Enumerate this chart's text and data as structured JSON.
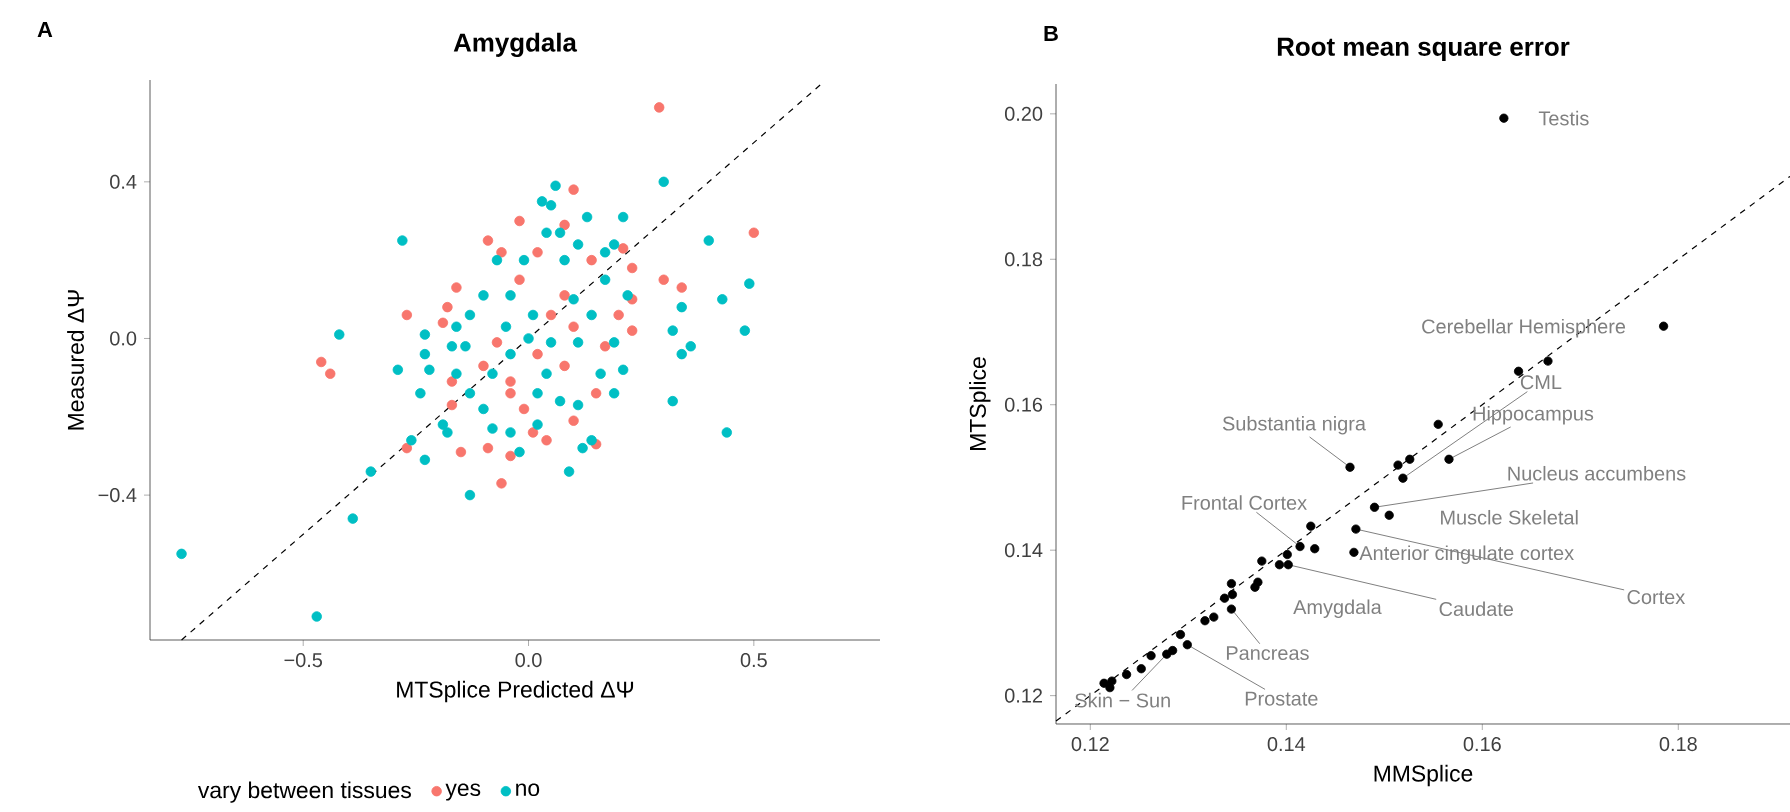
{
  "chart_data": [
    {
      "type": "scatter",
      "title": "Amygdala",
      "xlabel": "MTSplice Predicted ΔΨ",
      "ylabel": "Measured ΔΨ",
      "legend_title": "vary between tissues",
      "legend": "bottom",
      "marker": "circle",
      "grid": false,
      "annotations": [
        "A"
      ],
      "xlim": [
        -0.84,
        0.78
      ],
      "ylim": [
        -0.77,
        0.66
      ],
      "xticks": [
        {
          "value": -0.5,
          "label": "−0.5"
        },
        {
          "value": 0,
          "label": "0.0"
        },
        {
          "value": 0.5,
          "label": "0.5"
        }
      ],
      "yticks": [
        {
          "value": -0.4,
          "label": "−0.4"
        },
        {
          "value": 0,
          "label": "0.0"
        },
        {
          "value": 0.4,
          "label": "0.4"
        }
      ],
      "series": [
        {
          "name": "yes",
          "color": "#f8766d",
          "x": [
            0.29,
            0.1,
            0.5,
            0.3,
            0.34,
            0.23,
            0.23,
            0.2,
            -0.46,
            -0.44,
            -0.27,
            -0.18,
            -0.19,
            -0.16,
            -0.09,
            -0.06,
            -0.02,
            0.08,
            0.21,
            0.23,
            -0.06,
            -0.04,
            -0.15,
            -0.27,
            -0.09,
            0.04,
            0.15,
            0.1,
            0.15,
            -0.17,
            -0.17,
            0.01,
            -0.01,
            -0.04,
            0.02,
            0.05,
            0.08,
            -0.07,
            -0.1,
            0.14,
            0.02,
            -0.02,
            0.1,
            -0.04,
            0.08,
            0.17
          ],
          "values": [
            0.59,
            0.38,
            0.27,
            0.15,
            0.13,
            0.1,
            0.02,
            0.06,
            -0.06,
            -0.09,
            0.06,
            0.08,
            0.04,
            0.13,
            0.25,
            0.22,
            0.3,
            0.29,
            0.23,
            0.18,
            -0.37,
            -0.3,
            -0.29,
            -0.28,
            -0.28,
            -0.26,
            -0.27,
            -0.21,
            -0.14,
            -0.17,
            -0.11,
            -0.24,
            -0.18,
            -0.11,
            -0.04,
            0.06,
            0.11,
            -0.01,
            -0.07,
            0.2,
            0.22,
            0.15,
            0.03,
            -0.14,
            -0.07,
            -0.02
          ]
        },
        {
          "name": "no",
          "color": "#00bfc4",
          "x": [
            -0.77,
            -0.47,
            -0.42,
            -0.28,
            -0.39,
            -0.35,
            -0.13,
            -0.23,
            -0.26,
            -0.29,
            -0.24,
            -0.23,
            -0.23,
            -0.22,
            -0.19,
            -0.18,
            0.09,
            0.12,
            0.14,
            0.11,
            0.19,
            0.21,
            0.32,
            0.44,
            0.36,
            0.34,
            0.32,
            0.34,
            0.43,
            0.48,
            0.49,
            0.4,
            0.3,
            0.21,
            0.13,
            0.06,
            0.03,
            0.05,
            0.07,
            0.04,
            0.11,
            0.19,
            -0.07,
            -0.1,
            -0.13,
            -0.14,
            -0.16,
            -0.13,
            -0.1,
            -0.08,
            -0.04,
            0.02,
            0.07,
            0.16,
            0.19,
            0.22,
            0.17,
            0.08,
            -0.01,
            -0.04,
            0.01,
            0,
            -0.04,
            0.04,
            0.05,
            0.11,
            -0.05,
            -0.08,
            0.02,
            -0.02,
            0.14,
            0.1,
            0.17,
            -0.17,
            -0.16
          ],
          "values": [
            -0.55,
            -0.71,
            0.01,
            0.25,
            -0.46,
            -0.34,
            -0.4,
            -0.31,
            -0.26,
            -0.08,
            -0.14,
            0.01,
            -0.04,
            -0.08,
            -0.22,
            -0.24,
            -0.34,
            -0.28,
            -0.26,
            -0.17,
            -0.14,
            -0.08,
            -0.16,
            -0.24,
            -0.02,
            -0.04,
            0.02,
            0.08,
            0.1,
            0.02,
            0.14,
            0.25,
            0.4,
            0.31,
            0.31,
            0.39,
            0.35,
            0.34,
            0.27,
            0.27,
            0.24,
            0.24,
            0.2,
            0.11,
            0.06,
            -0.02,
            -0.09,
            -0.14,
            -0.18,
            -0.23,
            -0.24,
            -0.22,
            -0.16,
            -0.09,
            -0.01,
            0.11,
            0.15,
            0.2,
            0.2,
            0.11,
            0.06,
            0,
            -0.04,
            -0.09,
            -0.01,
            -0.01,
            0.03,
            -0.09,
            -0.14,
            -0.29,
            0.06,
            0.1,
            0.22,
            -0.02,
            0.03
          ]
        },
        {
          "type": "line",
          "marker": "none",
          "line_style": "dashed",
          "color": "#000000",
          "x": [
            -0.77,
            0.65
          ],
          "values": [
            -0.77,
            0.65
          ]
        }
      ]
    },
    {
      "type": "scatter",
      "title": "Root mean square error",
      "xlabel": "MMSplice",
      "ylabel": "MTSplice",
      "marker": "circle",
      "grid": false,
      "xlim": [
        0.1165,
        0.1914
      ],
      "ylim": [
        0.1161,
        0.2041
      ],
      "xticks": [
        {
          "value": 0.12,
          "label": "0.12"
        },
        {
          "value": 0.14,
          "label": "0.14"
        },
        {
          "value": 0.16,
          "label": "0.16"
        },
        {
          "value": 0.18,
          "label": "0.18"
        }
      ],
      "yticks": [
        {
          "value": 0.12,
          "label": "0.12"
        },
        {
          "value": 0.14,
          "label": "0.14"
        },
        {
          "value": 0.16,
          "label": "0.16"
        },
        {
          "value": 0.18,
          "label": "0.18"
        },
        {
          "value": 0.2,
          "label": "0.20"
        }
      ],
      "annotations": [
        "B",
        {
          "text": "Testis",
          "x": 0.1622,
          "y": 0.1994
        },
        {
          "text": "Cerebellar Hemisphere",
          "x": 0.1785,
          "y": 0.1708
        },
        {
          "text": "CML",
          "x": 0.1519,
          "y": 0.1499
        },
        {
          "text": "Hippocampus",
          "x": 0.1566,
          "y": 0.1525
        },
        {
          "text": "Substantia nigra",
          "x": 0.1465,
          "y": 0.1514
        },
        {
          "text": "Nucleus accumbens",
          "x": 0.149,
          "y": 0.1459
        },
        {
          "text": "Muscle Skeletal",
          "x": 0.1505,
          "y": 0.1448
        },
        {
          "text": "Frontal Cortex",
          "x": 0.1414,
          "y": 0.1405
        },
        {
          "text": "Anterior cingulate cortex",
          "x": 0.1429,
          "y": 0.1402
        },
        {
          "text": "Cortex",
          "x": 0.1471,
          "y": 0.1429
        },
        {
          "text": "Caudate",
          "x": 0.1402,
          "y": 0.138
        },
        {
          "text": "Amygdala",
          "x": 0.1393,
          "y": 0.138
        },
        {
          "text": "Pancreas",
          "x": 0.1344,
          "y": 0.1319
        },
        {
          "text": "Prostate",
          "x": 0.1299,
          "y": 0.127
        },
        {
          "text": "Skin − Sun",
          "x": 0.1278,
          "y": 0.1257
        }
      ],
      "series": [
        {
          "color": "#000000",
          "x": [
            0.1622,
            0.1785,
            0.1667,
            0.1637,
            0.1555,
            0.1566,
            0.1526,
            0.1514,
            0.1519,
            0.1465,
            0.149,
            0.1505,
            0.1471,
            0.1469,
            0.1425,
            0.1414,
            0.1429,
            0.1401,
            0.1402,
            0.1393,
            0.1375,
            0.1368,
            0.1371,
            0.1344,
            0.1345,
            0.1337,
            0.1344,
            0.1326,
            0.1317,
            0.1292,
            0.1299,
            0.1284,
            0.1278,
            0.1262,
            0.1252,
            0.1237,
            0.1222,
            0.1214,
            0.122
          ],
          "values": [
            0.1994,
            0.1708,
            0.166,
            0.1646,
            0.1573,
            0.1525,
            0.1525,
            0.1517,
            0.1499,
            0.1514,
            0.1459,
            0.1448,
            0.1429,
            0.1397,
            0.1433,
            0.1405,
            0.1402,
            0.1394,
            0.138,
            0.138,
            0.1385,
            0.1349,
            0.1356,
            0.1354,
            0.1339,
            0.1334,
            0.1319,
            0.1308,
            0.1303,
            0.1284,
            0.127,
            0.1262,
            0.1257,
            0.1255,
            0.1237,
            0.1229,
            0.122,
            0.1217,
            0.1211
          ]
        },
        {
          "type": "line",
          "marker": "none",
          "line_style": "dashed",
          "color": "#000000",
          "x": [
            0.1165,
            0.1914
          ],
          "values": [
            0.1165,
            0.1914
          ]
        }
      ]
    }
  ]
}
